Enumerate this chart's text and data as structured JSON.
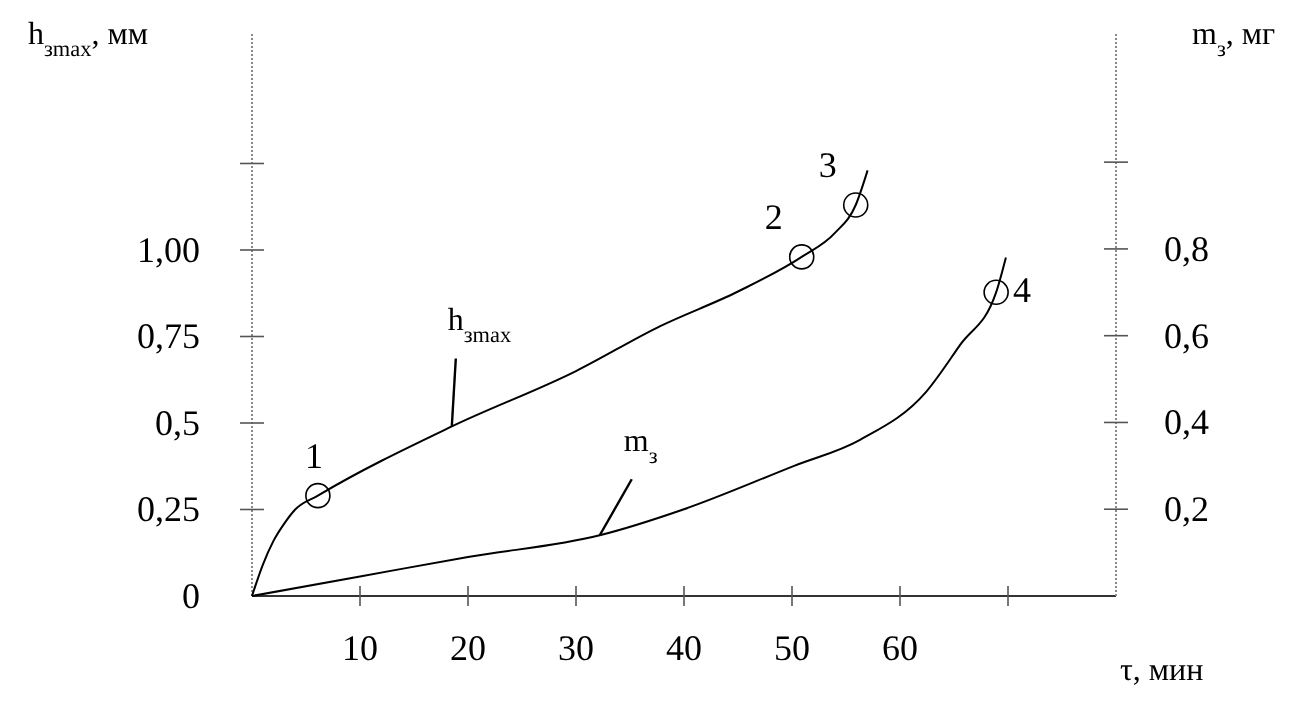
{
  "chart_data": {
    "type": "line",
    "xlabel": "τ, мин",
    "ylabel": "h$_{зmax}$, мм",
    "y2label": "m$_{з}$, мг",
    "xlim": [
      0,
      80
    ],
    "xticks": [
      10,
      20,
      30,
      40,
      50,
      60,
      {
        "value": 70,
        "label": null
      }
    ],
    "ylim": [
      0,
      1.63
    ],
    "yticks": [
      {
        "value": 0,
        "label": "0"
      },
      {
        "value": 0.25,
        "label": "0,25"
      },
      {
        "value": 0.5,
        "label": "0,5"
      },
      {
        "value": 0.75,
        "label": "0,75"
      },
      {
        "value": 1,
        "label": "1,00"
      },
      {
        "value": 1.25,
        "label": null
      }
    ],
    "y2lim": [
      0,
      1.3
    ],
    "y2ticks": [
      {
        "value": 0.2,
        "label": "0,2"
      },
      {
        "value": 0.4,
        "label": "0,4"
      },
      {
        "value": 0.6,
        "label": "0,6"
      },
      {
        "value": 0.8,
        "label": "0,8"
      },
      {
        "value": 1,
        "label": null
      }
    ],
    "grid": false,
    "legend": false,
    "line_style": "solid",
    "series": [
      {
        "name": "h$_{зmax}$",
        "color": "#000000",
        "x": [
          0,
          1,
          2,
          3,
          4,
          6.1,
          18.5,
          30,
          37.8,
          45,
          50.9,
          54,
          55.9,
          57
        ],
        "values": [
          0,
          0.09,
          0.16,
          0.21,
          0.25,
          0.29,
          0.49,
          0.65,
          0.78,
          0.88,
          0.98,
          1.05,
          1.13,
          1.23
        ]
      },
      {
        "name": "m$_{з}$",
        "axis": "y2",
        "color": "#000000",
        "x": [
          0,
          10,
          20,
          32.2,
          40,
          50.2,
          56.3,
          62.4,
          65.6,
          68.9,
          69.8
        ],
        "values": [
          0,
          0.045,
          0.09,
          0.14,
          0.2,
          0.3,
          0.36,
          0.47,
          0.58,
          0.7,
          0.78
        ]
      },
      {
        "type": "scatter",
        "marker": "circle",
        "color": "#000000",
        "x": [
          6.1,
          50.9,
          55.9
        ],
        "values": [
          0.29,
          0.98,
          1.13
        ]
      },
      {
        "type": "scatter",
        "marker": "circle",
        "axis": "y2",
        "color": "#000000",
        "x": [
          68.9
        ],
        "values": [
          0.7
        ]
      }
    ],
    "annotations": [
      {
        "text": "1",
        "x": 6.1,
        "y": 0.29
      },
      {
        "text": "2",
        "x": 50.9,
        "y": 0.98
      },
      {
        "text": "3",
        "x": 55.9,
        "y": 1.13
      },
      "4"
    ]
  }
}
